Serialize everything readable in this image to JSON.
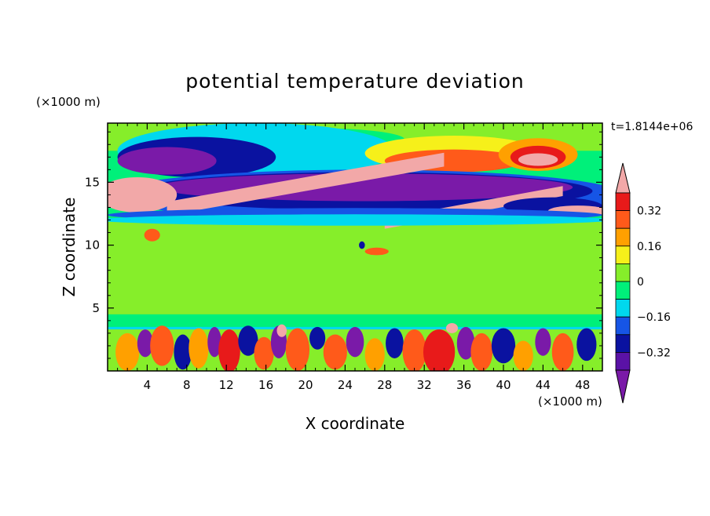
{
  "colors": {
    "lt_-0.40": "#7a1aa8",
    "-0.40_-0.32": "#5a12a6",
    "-0.32_-0.24": "#0a12a0",
    "-0.24_-0.16": "#1655e6",
    "-0.16_-0.08": "#00d8ee",
    "-0.08_0": "#00f07a",
    "0_0.08": "#86ee2a",
    "0.08_0.16": "#f6f01a",
    "0.16_0.24": "#ffa000",
    "0.24_0.32": "#ff5a1a",
    "0.32_0.40": "#e81a1a",
    "gt_0.40": "#f2a8a8"
  },
  "chart_data": {
    "type": "heatmap",
    "title": "potential temperature deviation",
    "xlabel": "X coordinate",
    "ylabel": "Z coordinate",
    "x_unit": "(×1000 m)",
    "y_unit": "(×1000 m)",
    "time_label": "t=1.8144e+06",
    "xlim": [
      0,
      50
    ],
    "ylim": [
      0,
      19.7
    ],
    "x_ticks": [
      4,
      8,
      12,
      16,
      20,
      24,
      28,
      32,
      36,
      40,
      44,
      48
    ],
    "y_ticks": [
      5,
      10,
      15
    ],
    "x_tick_labels": [
      "4",
      "8",
      "12",
      "16",
      "20",
      "24",
      "28",
      "32",
      "36",
      "40",
      "44",
      "48"
    ],
    "y_tick_labels": [
      "5",
      "10",
      "15"
    ],
    "colorbar": {
      "levels": [
        -0.4,
        -0.32,
        -0.24,
        -0.16,
        -0.08,
        0,
        0.08,
        0.16,
        0.24,
        0.32,
        0.4
      ],
      "labeled_levels": [
        0.32,
        0.16,
        0,
        -0.16,
        -0.32
      ],
      "labels": [
        "0.32",
        "0.16",
        "0",
        "−0.16",
        "−0.32"
      ],
      "extend": "both"
    },
    "background_value": -0.04,
    "features": [
      {
        "shape": "rect",
        "x": [
          0,
          50
        ],
        "y": [
          4.5,
          12
        ],
        "value": 0.03
      },
      {
        "shape": "rect",
        "x": [
          0,
          50
        ],
        "y": [
          17.5,
          19.7
        ],
        "value": 0.02
      },
      {
        "shape": "ellipse",
        "cx": 21,
        "cy": 18.4,
        "rx": 9,
        "ry": 0.9,
        "value": -0.04
      },
      {
        "shape": "ellipse",
        "cx": 15,
        "cy": 17.5,
        "rx": 14,
        "ry": 2.2,
        "value": -0.14
      },
      {
        "shape": "ellipse",
        "cx": 9,
        "cy": 17.0,
        "rx": 8,
        "ry": 1.6,
        "value": -0.28
      },
      {
        "shape": "ellipse",
        "cx": 6,
        "cy": 16.7,
        "rx": 5,
        "ry": 1.1,
        "value": -0.45
      },
      {
        "shape": "ellipse",
        "cx": 35,
        "cy": 17.3,
        "rx": 9,
        "ry": 1.4,
        "value": 0.12
      },
      {
        "shape": "ellipse",
        "cx": 35,
        "cy": 16.7,
        "rx": 7,
        "ry": 0.9,
        "value": 0.28
      },
      {
        "shape": "ellipse",
        "cx": 43.5,
        "cy": 17.2,
        "rx": 4,
        "ry": 1.3,
        "value": 0.2
      },
      {
        "shape": "ellipse",
        "cx": 43.5,
        "cy": 17.0,
        "rx": 2.8,
        "ry": 0.9,
        "value": 0.36
      },
      {
        "shape": "ellipse",
        "cx": 43.5,
        "cy": 16.8,
        "rx": 2.0,
        "ry": 0.5,
        "value": 0.45
      },
      {
        "shape": "ellipse",
        "cx": 26,
        "cy": 14.0,
        "rx": 26,
        "ry": 2.0,
        "value": -0.22
      },
      {
        "shape": "ellipse",
        "cx": 26,
        "cy": 14.3,
        "rx": 23,
        "ry": 1.5,
        "value": -0.3
      },
      {
        "shape": "ellipse",
        "cx": 26,
        "cy": 14.6,
        "rx": 21,
        "ry": 1.1,
        "value": -0.45
      },
      {
        "shape": "band",
        "x": [
          6,
          34
        ],
        "y_start": 12.9,
        "y_end": 16.8,
        "half_width": 0.55,
        "value": 0.45
      },
      {
        "shape": "ellipse",
        "cx": 3,
        "cy": 14.0,
        "rx": 4,
        "ry": 1.4,
        "value": 0.45
      },
      {
        "shape": "band",
        "x": [
          28,
          46
        ],
        "y_start": 11.7,
        "y_end": 14.3,
        "half_width": 0.4,
        "value": 0.45
      },
      {
        "shape": "ellipse",
        "cx": 45,
        "cy": 13.1,
        "rx": 5,
        "ry": 0.7,
        "value": -0.3
      },
      {
        "shape": "ellipse",
        "cx": 47.5,
        "cy": 12.7,
        "rx": 3,
        "ry": 0.45,
        "value": 0.45
      },
      {
        "shape": "ellipse",
        "cx": 25,
        "cy": 12.4,
        "rx": 25,
        "ry": 0.55,
        "value": -0.18
      },
      {
        "shape": "ellipse",
        "cx": 25,
        "cy": 12.0,
        "rx": 26,
        "ry": 0.45,
        "value": -0.11
      },
      {
        "shape": "ellipse",
        "cx": 4.5,
        "cy": 10.8,
        "rx": 0.8,
        "ry": 0.5,
        "value": 0.3
      },
      {
        "shape": "ellipse",
        "cx": 27.2,
        "cy": 9.5,
        "rx": 1.2,
        "ry": 0.3,
        "value": 0.3
      },
      {
        "shape": "ellipse",
        "cx": 25.7,
        "cy": 10.0,
        "rx": 0.3,
        "ry": 0.3,
        "value": -0.3
      },
      {
        "shape": "rect",
        "x": [
          0,
          50
        ],
        "y": [
          0,
          3.5
        ],
        "value": -0.1
      },
      {
        "shape": "rect",
        "x": [
          0,
          50
        ],
        "y": [
          0,
          3.3
        ],
        "value": 0.04
      },
      {
        "shape": "blob",
        "cx": 2,
        "cy": 1.5,
        "rx": 1.2,
        "ry": 1.5,
        "value": 0.2
      },
      {
        "shape": "blob",
        "cx": 3.8,
        "cy": 2.2,
        "rx": 0.8,
        "ry": 1.1,
        "value": -0.45
      },
      {
        "shape": "blob",
        "cx": 5.5,
        "cy": 2.0,
        "rx": 1.2,
        "ry": 1.6,
        "value": 0.3
      },
      {
        "shape": "blob",
        "cx": 7.6,
        "cy": 1.5,
        "rx": 0.9,
        "ry": 1.4,
        "value": -0.3
      },
      {
        "shape": "blob",
        "cx": 9.2,
        "cy": 1.8,
        "rx": 1.0,
        "ry": 1.6,
        "value": 0.22
      },
      {
        "shape": "blob",
        "cx": 10.8,
        "cy": 2.3,
        "rx": 0.7,
        "ry": 1.2,
        "value": -0.45
      },
      {
        "shape": "blob",
        "cx": 12.3,
        "cy": 1.6,
        "rx": 1.1,
        "ry": 1.7,
        "value": 0.34
      },
      {
        "shape": "blob",
        "cx": 14.2,
        "cy": 2.4,
        "rx": 1.0,
        "ry": 1.2,
        "value": -0.3
      },
      {
        "shape": "blob",
        "cx": 15.8,
        "cy": 1.4,
        "rx": 1.0,
        "ry": 1.3,
        "value": 0.28
      },
      {
        "shape": "blob",
        "cx": 17.3,
        "cy": 2.3,
        "rx": 0.8,
        "ry": 1.3,
        "value": -0.45
      },
      {
        "shape": "blob",
        "cx": 19.2,
        "cy": 1.7,
        "rx": 1.2,
        "ry": 1.7,
        "value": 0.24
      },
      {
        "shape": "blob",
        "cx": 21.2,
        "cy": 2.6,
        "rx": 0.8,
        "ry": 0.9,
        "value": -0.3
      },
      {
        "shape": "blob",
        "cx": 23.0,
        "cy": 1.5,
        "rx": 1.2,
        "ry": 1.4,
        "value": 0.3
      },
      {
        "shape": "blob",
        "cx": 25.0,
        "cy": 2.3,
        "rx": 0.9,
        "ry": 1.2,
        "value": -0.45
      },
      {
        "shape": "blob",
        "cx": 27.0,
        "cy": 1.3,
        "rx": 1.0,
        "ry": 1.3,
        "value": 0.2
      },
      {
        "shape": "blob",
        "cx": 29.0,
        "cy": 2.2,
        "rx": 0.9,
        "ry": 1.2,
        "value": -0.3
      },
      {
        "shape": "blob",
        "cx": 31.0,
        "cy": 1.6,
        "rx": 1.2,
        "ry": 1.7,
        "value": 0.26
      },
      {
        "shape": "blob",
        "cx": 33.5,
        "cy": 1.5,
        "rx": 1.6,
        "ry": 1.8,
        "value": 0.36
      },
      {
        "shape": "blob",
        "cx": 36.2,
        "cy": 2.2,
        "rx": 0.9,
        "ry": 1.3,
        "value": -0.45
      },
      {
        "shape": "blob",
        "cx": 37.8,
        "cy": 1.5,
        "rx": 1.1,
        "ry": 1.5,
        "value": 0.3
      },
      {
        "shape": "blob",
        "cx": 40.0,
        "cy": 2.0,
        "rx": 1.2,
        "ry": 1.4,
        "value": -0.3
      },
      {
        "shape": "blob",
        "cx": 42.0,
        "cy": 1.2,
        "rx": 1.0,
        "ry": 1.2,
        "value": 0.2
      },
      {
        "shape": "blob",
        "cx": 44.0,
        "cy": 2.3,
        "rx": 0.8,
        "ry": 1.1,
        "value": -0.45
      },
      {
        "shape": "blob",
        "cx": 46.0,
        "cy": 1.5,
        "rx": 1.1,
        "ry": 1.5,
        "value": 0.26
      },
      {
        "shape": "blob",
        "cx": 48.4,
        "cy": 2.1,
        "rx": 1.0,
        "ry": 1.3,
        "value": -0.3
      },
      {
        "shape": "blob",
        "cx": 17.6,
        "cy": 3.2,
        "rx": 0.5,
        "ry": 0.5,
        "value": 0.45
      },
      {
        "shape": "blob",
        "cx": 34.8,
        "cy": 3.4,
        "rx": 0.6,
        "ry": 0.4,
        "value": 0.45
      }
    ]
  }
}
